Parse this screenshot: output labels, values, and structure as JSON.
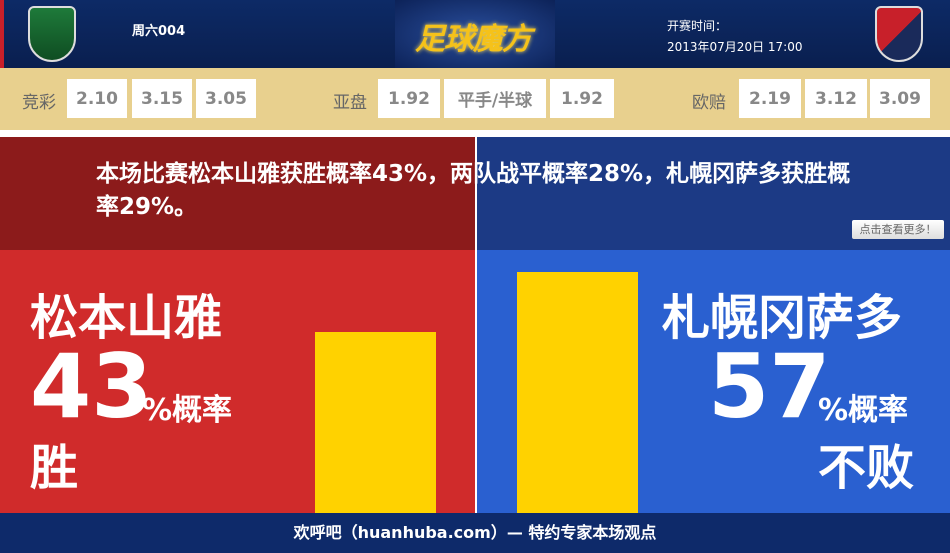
{
  "header": {
    "match_id": "周六004",
    "logo": "足球魔方",
    "time_label": "开赛时间：",
    "time_value": "2013年07月20日 17:00",
    "home_crest": "matsumoto-crest-icon",
    "away_crest": "sapporo-crest-icon"
  },
  "odds": {
    "jingcai": {
      "label": "竞彩",
      "values": [
        "2.10",
        "3.15",
        "3.05"
      ]
    },
    "yapan": {
      "label": "亚盘",
      "values": [
        "1.92",
        "平手/半球",
        "1.92"
      ]
    },
    "oupei": {
      "label": "欧赔",
      "values": [
        "2.19",
        "3.12",
        "3.09"
      ]
    }
  },
  "summary": {
    "text": "本场比赛松本山雅获胜概率43%，两队战平概率28%，札幌冈萨多获胜概率29%。",
    "more": "点击查看更多！"
  },
  "home": {
    "name": "松本山雅",
    "percent": "43",
    "unit": "%概率",
    "result": "胜",
    "bar_value": 43,
    "color": "#d02b2b"
  },
  "away": {
    "name": "札幌冈萨多",
    "percent": "57",
    "unit": "%概率",
    "result": "不败",
    "bar_value": 57,
    "color": "#2a60d0"
  },
  "bar_color": "#ffd200",
  "footer": {
    "text": "欢呼吧（huanhuba.com）— 特约专家本场观点"
  }
}
